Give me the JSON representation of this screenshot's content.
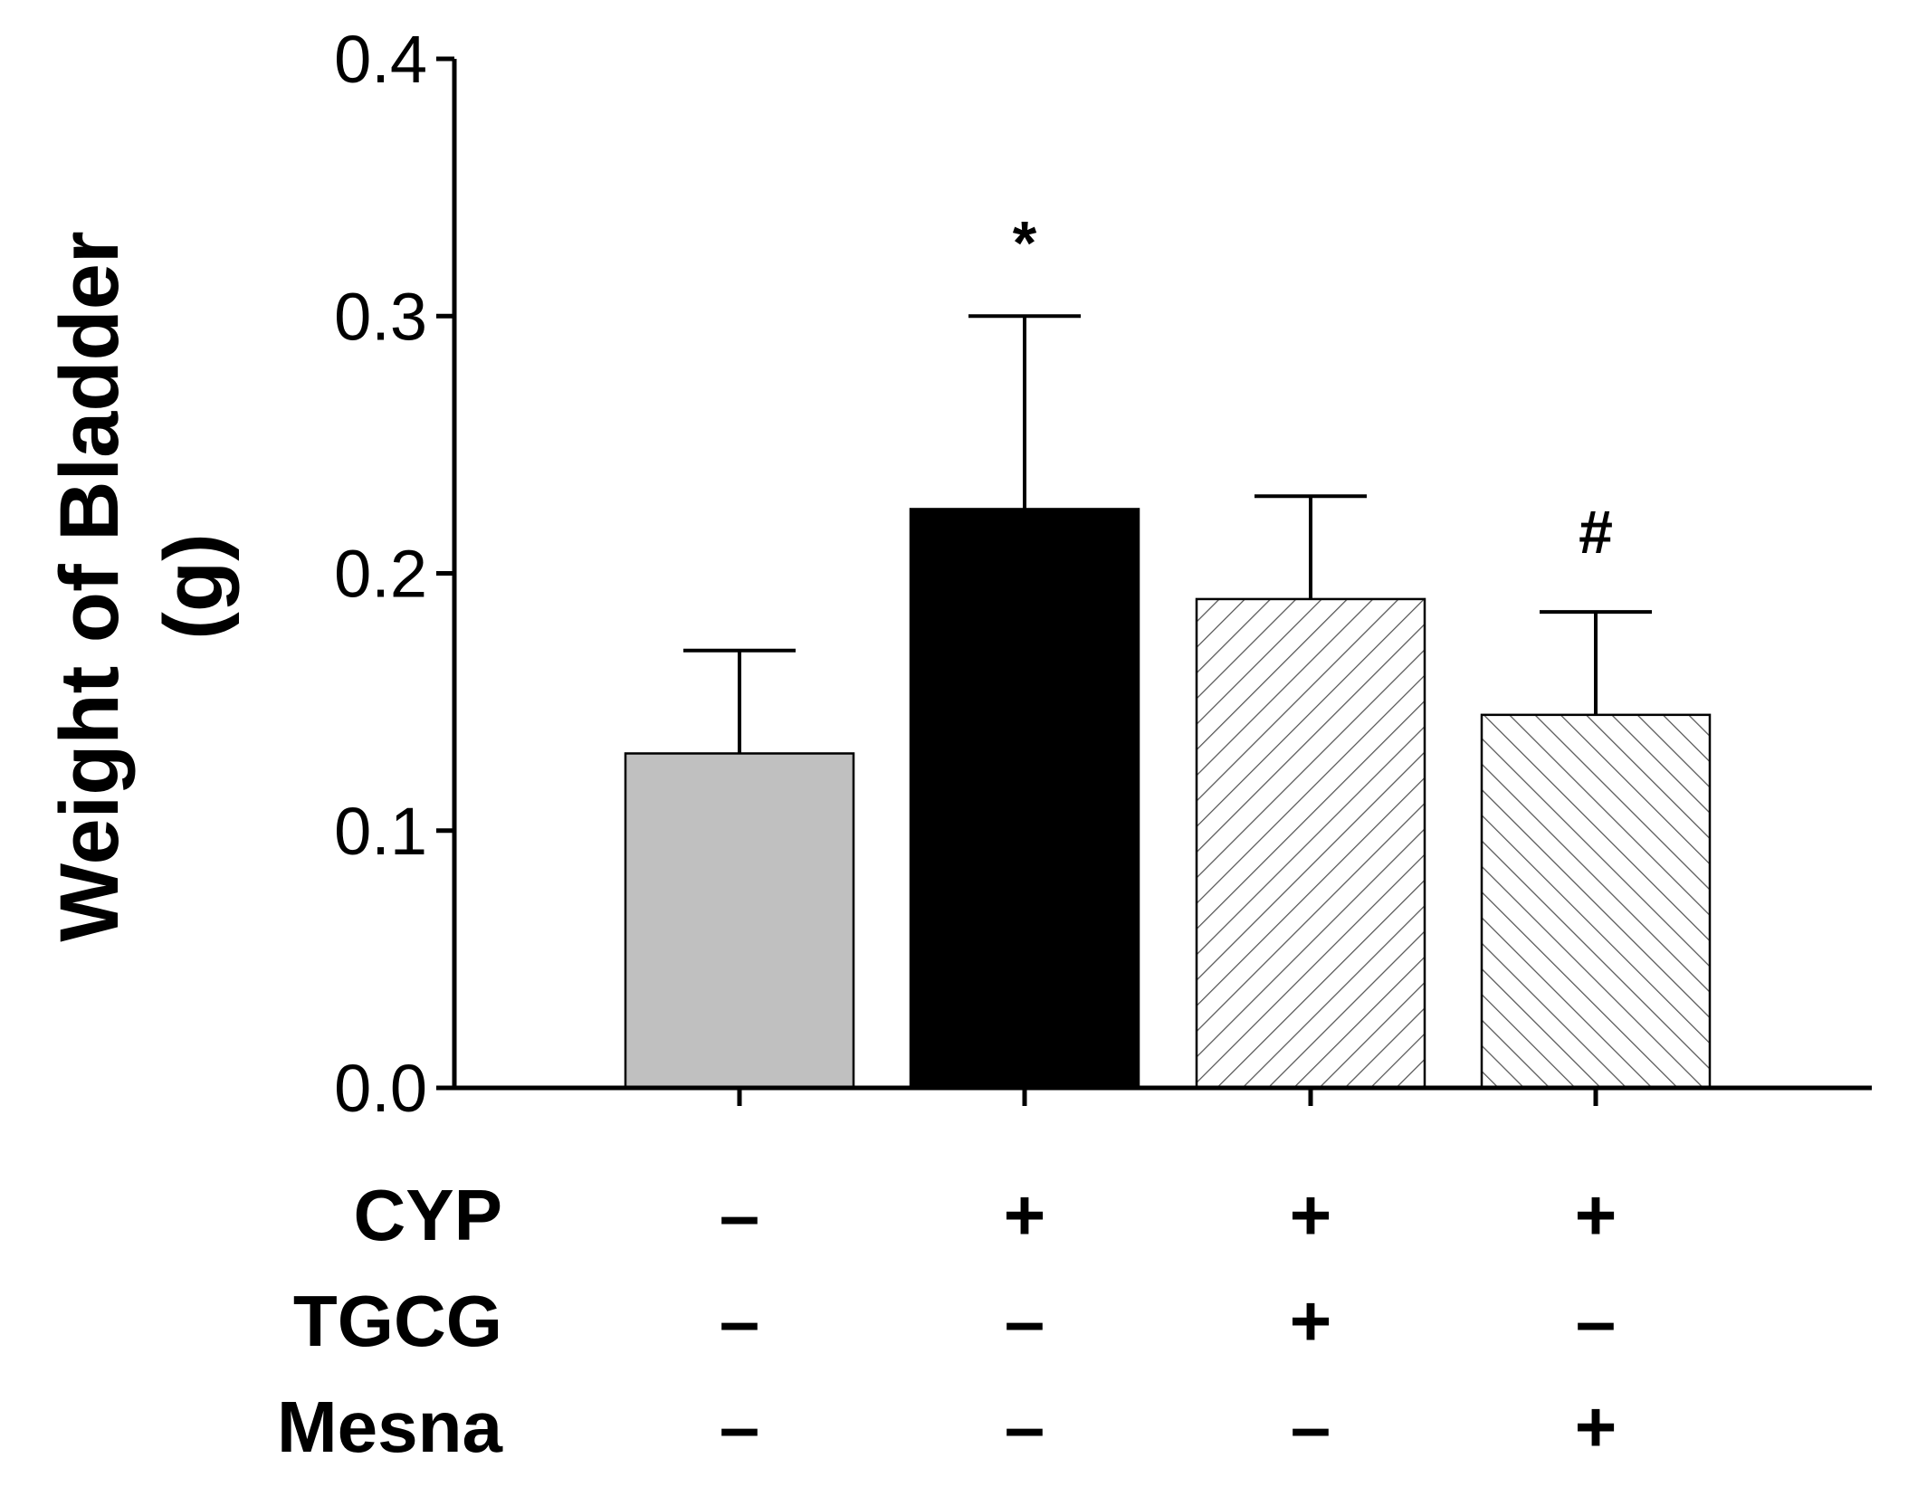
{
  "chart_data": {
    "type": "bar",
    "title": "",
    "xlabel": "",
    "ylabel": "Weight of Bladder (g)",
    "ylabel_lines": [
      "Weight of Bladder",
      "(g)"
    ],
    "ylim": [
      0,
      0.4
    ],
    "yticks": [
      "0.0",
      "0.1",
      "0.2",
      "0.3",
      "0.4"
    ],
    "ytick_values": [
      0,
      0.1,
      0.2,
      0.3,
      0.4
    ],
    "grid": false,
    "categories": [
      "CYP- TGCG- Mesna-",
      "CYP+ TGCG- Mesna-",
      "CYP+ TGCG+ Mesna-",
      "CYP+ TGCG- Mesna+"
    ],
    "values": [
      0.13,
      0.225,
      0.19,
      0.145
    ],
    "error_upper": [
      0.04,
      0.075,
      0.04,
      0.04
    ],
    "bar_fills": [
      "solid-gray",
      "solid-black",
      "hatch-forward",
      "hatch-back"
    ],
    "annotations": [
      "",
      "*",
      "",
      "#"
    ],
    "treatment_rows": [
      {
        "label": "CYP",
        "symbols": [
          "–",
          "+",
          "+",
          "+"
        ]
      },
      {
        "label": "TGCG",
        "symbols": [
          "–",
          "–",
          "+",
          "–"
        ]
      },
      {
        "label": "Mesna",
        "symbols": [
          "–",
          "–",
          "–",
          "+"
        ]
      }
    ]
  },
  "colors": {
    "gray_bar": "#c0c0c0",
    "black_bar": "#000000",
    "hatch_bar_bg": "#ffffff",
    "hatch_line": "#555555",
    "axis": "#000000"
  }
}
